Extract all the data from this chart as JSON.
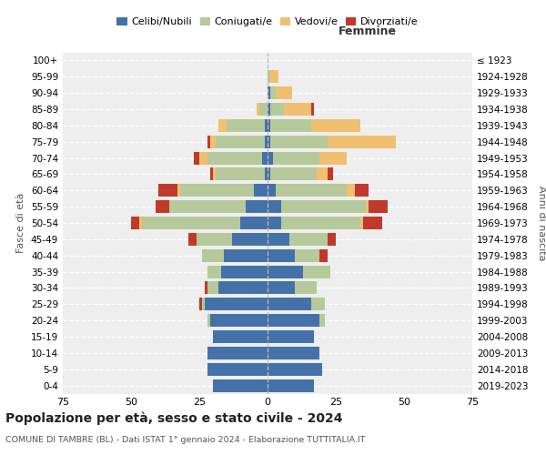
{
  "age_groups": [
    "0-4",
    "5-9",
    "10-14",
    "15-19",
    "20-24",
    "25-29",
    "30-34",
    "35-39",
    "40-44",
    "45-49",
    "50-54",
    "55-59",
    "60-64",
    "65-69",
    "70-74",
    "75-79",
    "80-84",
    "85-89",
    "90-94",
    "95-99",
    "100+"
  ],
  "birth_years": [
    "2019-2023",
    "2014-2018",
    "2009-2013",
    "2004-2008",
    "1999-2003",
    "1994-1998",
    "1989-1993",
    "1984-1988",
    "1979-1983",
    "1974-1978",
    "1969-1973",
    "1964-1968",
    "1959-1963",
    "1954-1958",
    "1949-1953",
    "1944-1948",
    "1939-1943",
    "1934-1938",
    "1929-1933",
    "1924-1928",
    "≤ 1923"
  ],
  "male": {
    "celibi": [
      20,
      22,
      22,
      20,
      21,
      23,
      18,
      17,
      16,
      13,
      10,
      8,
      5,
      1,
      2,
      1,
      1,
      0,
      0,
      0,
      0
    ],
    "coniugati": [
      0,
      0,
      0,
      0,
      1,
      1,
      4,
      5,
      8,
      13,
      36,
      28,
      27,
      18,
      20,
      18,
      14,
      3,
      0,
      0,
      0
    ],
    "vedovi": [
      0,
      0,
      0,
      0,
      0,
      0,
      0,
      0,
      0,
      0,
      1,
      0,
      1,
      1,
      3,
      2,
      3,
      1,
      0,
      0,
      0
    ],
    "divorziati": [
      0,
      0,
      0,
      0,
      0,
      1,
      1,
      0,
      0,
      3,
      3,
      5,
      7,
      1,
      2,
      1,
      0,
      0,
      0,
      0,
      0
    ]
  },
  "female": {
    "nubili": [
      17,
      20,
      19,
      17,
      19,
      16,
      10,
      13,
      10,
      8,
      5,
      5,
      3,
      1,
      2,
      1,
      1,
      1,
      1,
      0,
      0
    ],
    "coniugate": [
      0,
      0,
      0,
      0,
      2,
      5,
      8,
      10,
      9,
      14,
      29,
      31,
      26,
      17,
      17,
      21,
      15,
      5,
      2,
      1,
      0
    ],
    "vedove": [
      0,
      0,
      0,
      0,
      0,
      0,
      0,
      0,
      0,
      0,
      1,
      1,
      3,
      4,
      10,
      25,
      18,
      10,
      6,
      3,
      0
    ],
    "divorziate": [
      0,
      0,
      0,
      0,
      0,
      0,
      0,
      0,
      3,
      3,
      7,
      7,
      5,
      2,
      0,
      0,
      0,
      1,
      0,
      0,
      0
    ]
  },
  "colors": {
    "celibi": "#4472a8",
    "coniugati": "#b5c99a",
    "vedovi": "#f0c070",
    "divorziati": "#c0392b"
  },
  "xlim": [
    -75,
    75
  ],
  "title": "Popolazione per età, sesso e stato civile - 2024",
  "subtitle": "COMUNE DI TAMBRE (BL) - Dati ISTAT 1° gennaio 2024 - Elaborazione TUTTITALIA.IT",
  "xlabel_right": "Femmine",
  "ylabel_left": "Fasce di età",
  "ylabel_right": "Anni di nascita",
  "legend_labels": [
    "Celibi/Nubili",
    "Coniugati/e",
    "Vedovi/e",
    "Divorziati/e"
  ],
  "background_color": "#ffffff",
  "plot_bg_color": "#eeeeee"
}
